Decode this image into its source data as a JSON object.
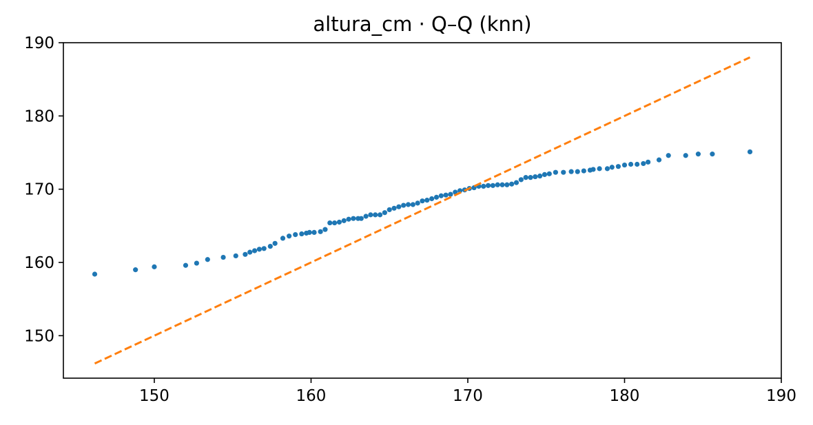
{
  "chart_data": {
    "type": "scatter",
    "title": "altura_cm · Q–Q (knn)",
    "xlabel": "",
    "ylabel": "",
    "xlim": [
      144.2,
      190.0
    ],
    "ylim": [
      144.2,
      190.0
    ],
    "x_ticks": [
      150,
      160,
      170,
      180,
      190
    ],
    "y_ticks": [
      150,
      160,
      170,
      180,
      190
    ],
    "grid": false,
    "series": [
      {
        "kind": "points",
        "color": "#1f77b4",
        "points": [
          [
            146.2,
            158.4
          ],
          [
            148.8,
            159.0
          ],
          [
            150.0,
            159.4
          ],
          [
            152.0,
            159.6
          ],
          [
            152.7,
            159.9
          ],
          [
            153.4,
            160.4
          ],
          [
            154.4,
            160.7
          ],
          [
            155.2,
            160.9
          ],
          [
            155.8,
            161.1
          ],
          [
            156.1,
            161.4
          ],
          [
            156.4,
            161.6
          ],
          [
            156.7,
            161.8
          ],
          [
            157.0,
            161.9
          ],
          [
            157.4,
            162.2
          ],
          [
            157.7,
            162.6
          ],
          [
            158.2,
            163.3
          ],
          [
            158.6,
            163.6
          ],
          [
            159.0,
            163.8
          ],
          [
            159.4,
            163.9
          ],
          [
            159.7,
            164.0
          ],
          [
            159.9,
            164.1
          ],
          [
            160.2,
            164.1
          ],
          [
            160.6,
            164.2
          ],
          [
            160.9,
            164.5
          ],
          [
            161.2,
            165.4
          ],
          [
            161.5,
            165.4
          ],
          [
            161.8,
            165.5
          ],
          [
            162.1,
            165.7
          ],
          [
            162.4,
            165.9
          ],
          [
            162.7,
            166.0
          ],
          [
            163.0,
            166.0
          ],
          [
            163.2,
            166.0
          ],
          [
            163.5,
            166.3
          ],
          [
            163.8,
            166.5
          ],
          [
            164.1,
            166.5
          ],
          [
            164.4,
            166.5
          ],
          [
            164.7,
            166.8
          ],
          [
            165.0,
            167.2
          ],
          [
            165.3,
            167.4
          ],
          [
            165.6,
            167.6
          ],
          [
            165.9,
            167.8
          ],
          [
            166.2,
            167.9
          ],
          [
            166.5,
            167.9
          ],
          [
            166.8,
            168.1
          ],
          [
            167.1,
            168.4
          ],
          [
            167.4,
            168.5
          ],
          [
            167.7,
            168.7
          ],
          [
            168.0,
            168.9
          ],
          [
            168.3,
            169.1
          ],
          [
            168.6,
            169.2
          ],
          [
            168.9,
            169.3
          ],
          [
            169.2,
            169.6
          ],
          [
            169.5,
            169.8
          ],
          [
            169.8,
            169.9
          ],
          [
            170.1,
            170.1
          ],
          [
            170.4,
            170.2
          ],
          [
            170.7,
            170.4
          ],
          [
            171.0,
            170.4
          ],
          [
            171.3,
            170.5
          ],
          [
            171.6,
            170.5
          ],
          [
            171.9,
            170.6
          ],
          [
            172.2,
            170.6
          ],
          [
            172.5,
            170.6
          ],
          [
            172.8,
            170.7
          ],
          [
            173.1,
            170.9
          ],
          [
            173.4,
            171.3
          ],
          [
            173.7,
            171.6
          ],
          [
            174.0,
            171.6
          ],
          [
            174.3,
            171.7
          ],
          [
            174.6,
            171.8
          ],
          [
            174.9,
            172.0
          ],
          [
            175.2,
            172.1
          ],
          [
            175.6,
            172.3
          ],
          [
            176.1,
            172.3
          ],
          [
            176.6,
            172.4
          ],
          [
            177.0,
            172.4
          ],
          [
            177.4,
            172.5
          ],
          [
            177.8,
            172.6
          ],
          [
            178.0,
            172.7
          ],
          [
            178.4,
            172.8
          ],
          [
            178.9,
            172.8
          ],
          [
            179.2,
            173.0
          ],
          [
            179.6,
            173.1
          ],
          [
            180.0,
            173.3
          ],
          [
            180.4,
            173.4
          ],
          [
            180.8,
            173.4
          ],
          [
            181.2,
            173.5
          ],
          [
            181.5,
            173.7
          ],
          [
            182.2,
            174.0
          ],
          [
            182.8,
            174.6
          ],
          [
            183.9,
            174.6
          ],
          [
            184.7,
            174.8
          ],
          [
            185.6,
            174.8
          ],
          [
            188.0,
            175.1
          ]
        ]
      },
      {
        "kind": "reference-line",
        "color": "#ff7f0e",
        "style": "dashed",
        "points": [
          [
            146.2,
            146.2
          ],
          [
            188.0,
            188.0
          ]
        ]
      }
    ]
  }
}
